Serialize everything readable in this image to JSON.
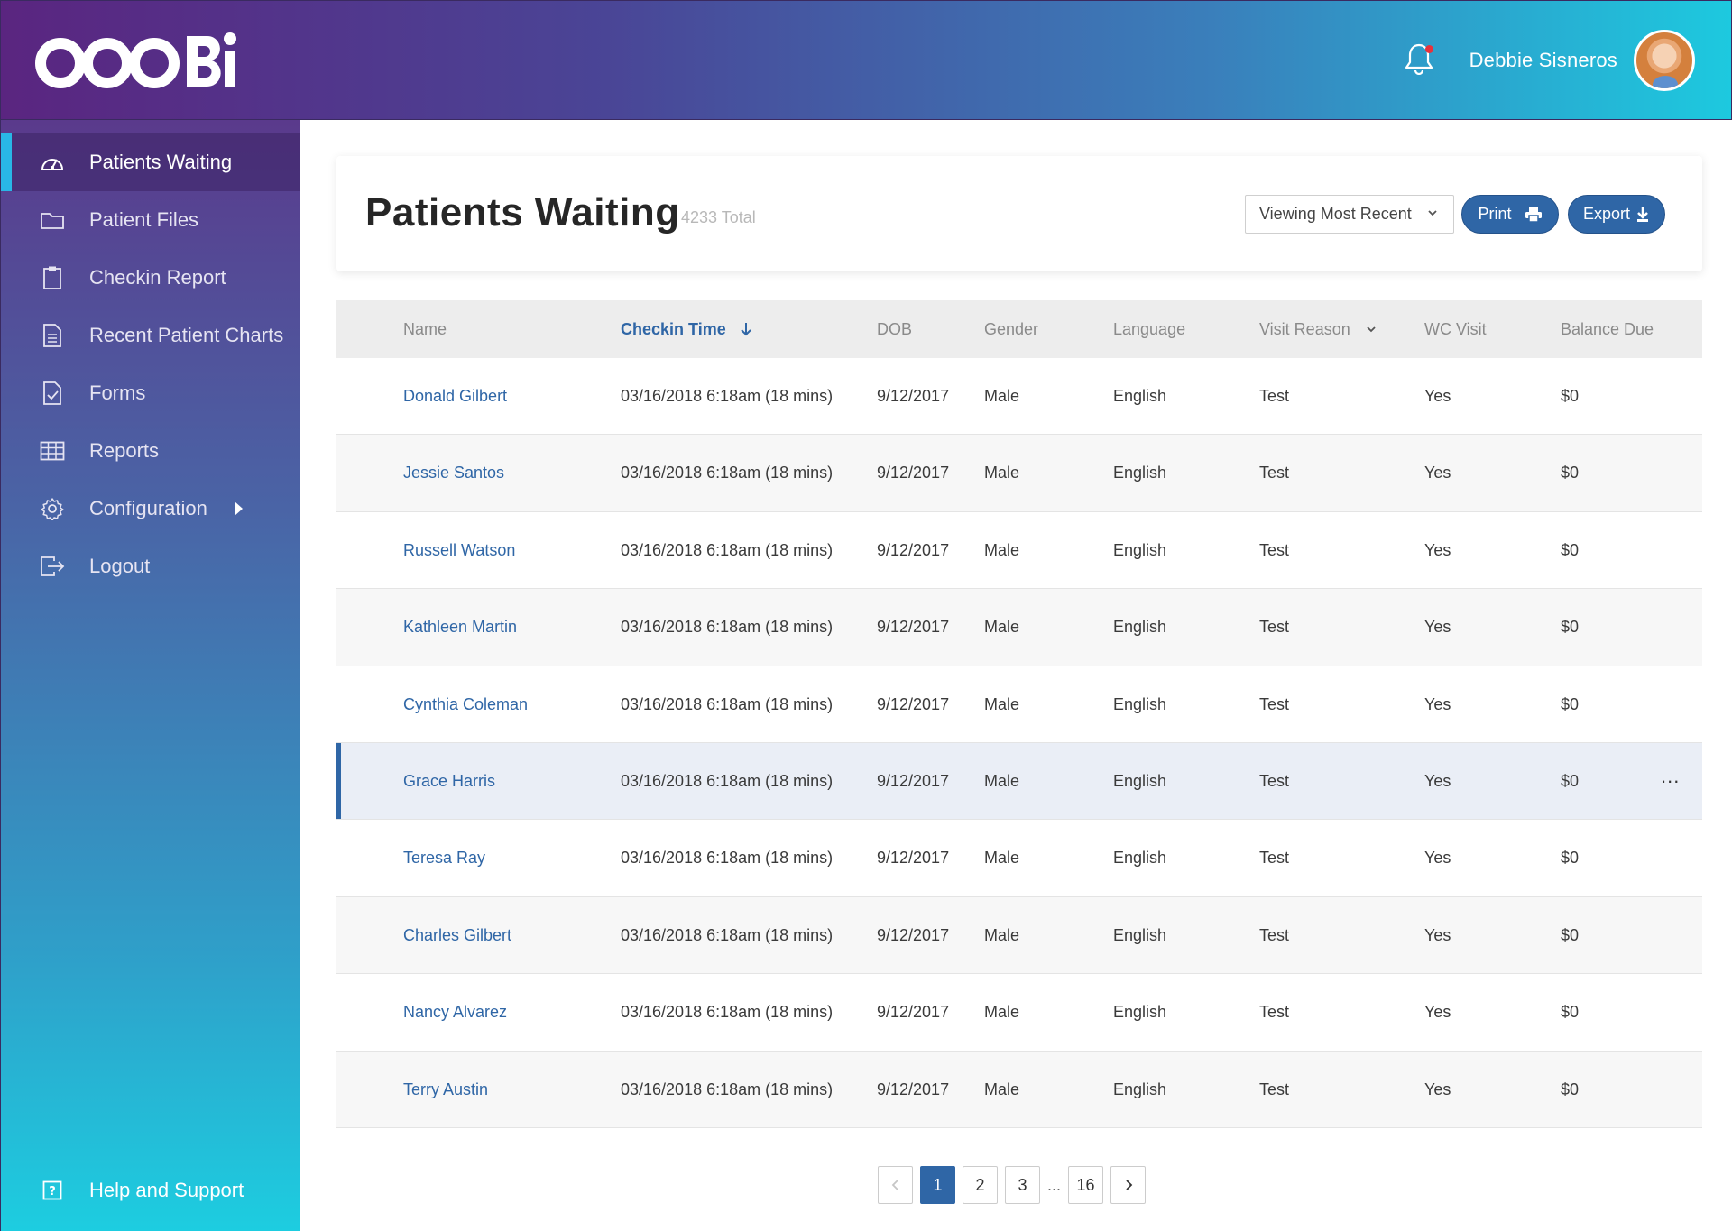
{
  "header": {
    "logo_text": "OOOBi",
    "user_name": "Debbie Sisneros"
  },
  "sidebar": {
    "items": [
      {
        "label": "Patients Waiting",
        "icon": "dashboard-icon"
      },
      {
        "label": "Patient Files",
        "icon": "folder-icon"
      },
      {
        "label": "Checkin Report",
        "icon": "clipboard-icon"
      },
      {
        "label": "Recent Patient Charts",
        "icon": "document-icon"
      },
      {
        "label": "Forms",
        "icon": "form-check-icon"
      },
      {
        "label": "Reports",
        "icon": "grid-table-icon"
      },
      {
        "label": "Configuration",
        "icon": "gear-icon"
      },
      {
        "label": "Logout",
        "icon": "logout-icon"
      }
    ],
    "help_label": "Help and Support"
  },
  "main": {
    "title": "Patients Waiting",
    "total": "4233 Total",
    "view_select": "Viewing Most Recent",
    "print_label": "Print",
    "export_label": "Export"
  },
  "table": {
    "columns": [
      "Name",
      "Checkin Time",
      "DOB",
      "Gender",
      "Language",
      "Visit Reason",
      "WC Visit",
      "Balance Due"
    ],
    "rows": [
      {
        "name": "Donald Gilbert",
        "checkin": "03/16/2018 6:18am (18 mins)",
        "dob": "9/12/2017",
        "gender": "Male",
        "language": "English",
        "reason": "Test",
        "wc": "Yes",
        "balance": "$0"
      },
      {
        "name": "Jessie Santos",
        "checkin": "03/16/2018 6:18am (18 mins)",
        "dob": "9/12/2017",
        "gender": "Male",
        "language": "English",
        "reason": "Test",
        "wc": "Yes",
        "balance": "$0"
      },
      {
        "name": "Russell Watson",
        "checkin": "03/16/2018 6:18am (18 mins)",
        "dob": "9/12/2017",
        "gender": "Male",
        "language": "English",
        "reason": "Test",
        "wc": "Yes",
        "balance": "$0"
      },
      {
        "name": "Kathleen Martin",
        "checkin": "03/16/2018 6:18am (18 mins)",
        "dob": "9/12/2017",
        "gender": "Male",
        "language": "English",
        "reason": "Test",
        "wc": "Yes",
        "balance": "$0"
      },
      {
        "name": "Cynthia Coleman",
        "checkin": "03/16/2018 6:18am (18 mins)",
        "dob": "9/12/2017",
        "gender": "Male",
        "language": "English",
        "reason": "Test",
        "wc": "Yes",
        "balance": "$0"
      },
      {
        "name": "Grace Harris",
        "checkin": "03/16/2018 6:18am (18 mins)",
        "dob": "9/12/2017",
        "gender": "Male",
        "language": "English",
        "reason": "Test",
        "wc": "Yes",
        "balance": "$0"
      },
      {
        "name": "Teresa Ray",
        "checkin": "03/16/2018 6:18am (18 mins)",
        "dob": "9/12/2017",
        "gender": "Male",
        "language": "English",
        "reason": "Test",
        "wc": "Yes",
        "balance": "$0"
      },
      {
        "name": "Charles Gilbert",
        "checkin": "03/16/2018 6:18am (18 mins)",
        "dob": "9/12/2017",
        "gender": "Male",
        "language": "English",
        "reason": "Test",
        "wc": "Yes",
        "balance": "$0"
      },
      {
        "name": "Nancy Alvarez",
        "checkin": "03/16/2018 6:18am (18 mins)",
        "dob": "9/12/2017",
        "gender": "Male",
        "language": "English",
        "reason": "Test",
        "wc": "Yes",
        "balance": "$0"
      },
      {
        "name": "Terry Austin",
        "checkin": "03/16/2018 6:18am (18 mins)",
        "dob": "9/12/2017",
        "gender": "Male",
        "language": "English",
        "reason": "Test",
        "wc": "Yes",
        "balance": "$0"
      }
    ],
    "row_more": "..."
  },
  "pagination": {
    "pages": [
      "1",
      "2",
      "3"
    ],
    "ellipsis": "...",
    "last": "16"
  },
  "colors": {
    "accent": "#2f66a6",
    "sidebar_active_marker": "#29b6e6",
    "notification_dot": "#e8323c"
  }
}
